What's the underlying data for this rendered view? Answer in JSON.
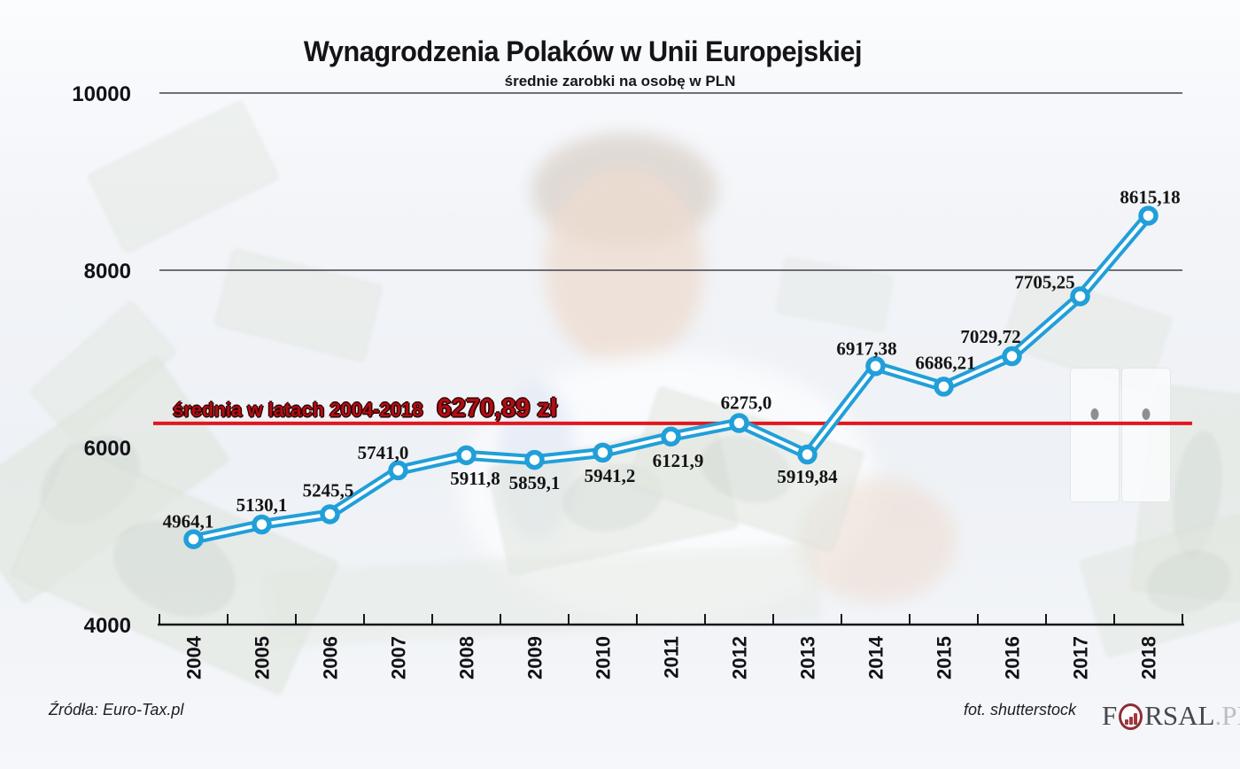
{
  "chart_data": {
    "type": "line",
    "title": "Wynagrodzenia Polaków w Unii Europejskiej",
    "subtitle": "średnie zarobki na osobę w PLN",
    "categories": [
      "2004",
      "2005",
      "2006",
      "2007",
      "2008",
      "2009",
      "2010",
      "2011",
      "2012",
      "2013",
      "2014",
      "2015",
      "2016",
      "2017",
      "2018"
    ],
    "series": [
      {
        "name": "średnie zarobki na osobę (PLN)",
        "values": [
          4964.1,
          5130.1,
          5245.5,
          5741.0,
          5911.8,
          5859.1,
          5941.2,
          6121.9,
          6275.0,
          5919.84,
          6917.38,
          6686.21,
          7029.72,
          7705.25,
          8615.18
        ]
      }
    ],
    "value_labels": [
      "4964,1",
      "5130,1",
      "5245,5",
      "5741,0",
      "5911,8",
      "5859,1",
      "5941,2",
      "6121,9",
      "6275,0",
      "5919,84",
      "6917,38",
      "6686,21",
      "7029,72",
      "7705,25",
      "8615,18"
    ],
    "ylim": [
      4000,
      10000
    ],
    "yticks": [
      10000,
      8000,
      6000,
      4000
    ],
    "gridline_values": [
      10000,
      8000
    ],
    "legend_position": "none",
    "grid": "horizontal-partial",
    "line_color": "#219fd9",
    "marker": "open-circle",
    "average_line": {
      "value": 6270.89,
      "label": "średnia w latach 2004-2018",
      "value_label": "6270,89 zł",
      "color": "#e2171f"
    }
  },
  "footer": {
    "source": "Źródła: Euro-Tax.pl",
    "photo_credit": "fot. shutterstock",
    "logo": {
      "prefix": "F",
      "suffix": "RSAL",
      "domain": ".PL",
      "icon": "bar-chart-circle-icon"
    }
  }
}
